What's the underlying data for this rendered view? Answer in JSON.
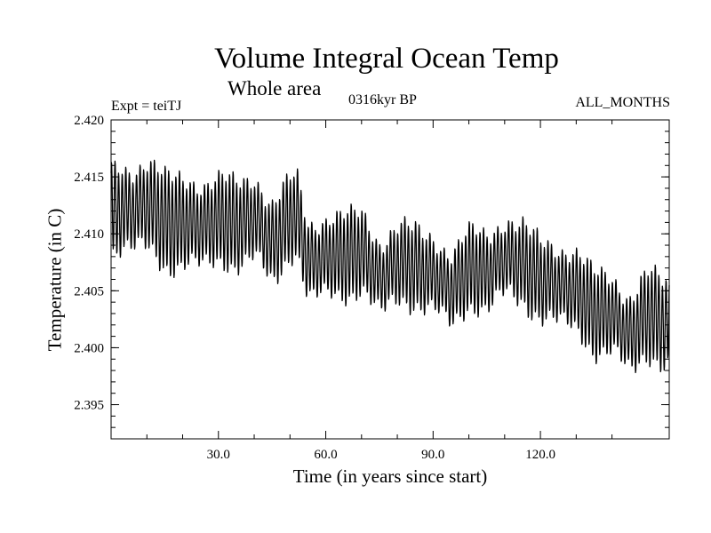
{
  "chart_data": {
    "type": "line",
    "title": "Volume Integral Ocean Temp",
    "subtitle": "Whole area",
    "annotations": {
      "experiment": "Expt = teiTJ",
      "period": "0316kyr BP",
      "months": "ALL_MONTHS"
    },
    "xlabel": "Time (in years since start)",
    "ylabel": "Temperature (in C)",
    "xlim": [
      0,
      156
    ],
    "ylim": [
      2.392,
      2.42
    ],
    "x_ticks": [
      30,
      60,
      90,
      120
    ],
    "x_tick_labels": [
      "30.0",
      "60.0",
      "90.0",
      "120.0"
    ],
    "y_ticks": [
      2.395,
      2.4,
      2.405,
      2.41,
      2.415,
      2.42
    ],
    "y_tick_labels": [
      "2.395",
      "2.400",
      "2.405",
      "2.410",
      "2.415",
      "2.420"
    ],
    "grid": false,
    "series": [
      {
        "name": "Volume integral ocean temperature",
        "color": "#000000",
        "seasonal_cycle_years": 1,
        "annual_mean": {
          "x": [
            0,
            5,
            10,
            15,
            20,
            25,
            30,
            35,
            40,
            45,
            50,
            52,
            55,
            60,
            65,
            70,
            75,
            80,
            85,
            90,
            95,
            100,
            105,
            110,
            115,
            120,
            125,
            130,
            135,
            140,
            145,
            150,
            156
          ],
          "y": [
            2.4115,
            2.4125,
            2.4122,
            2.4115,
            2.4105,
            2.4112,
            2.4108,
            2.4112,
            2.411,
            2.4095,
            2.411,
            2.4115,
            2.408,
            2.4075,
            2.4085,
            2.408,
            2.4065,
            2.407,
            2.4075,
            2.406,
            2.4055,
            2.4065,
            2.407,
            2.4075,
            2.4078,
            2.4055,
            2.406,
            2.4045,
            2.4035,
            2.4025,
            2.4015,
            2.4025,
            2.4025
          ]
        },
        "annual_amplitude": {
          "x": [
            0,
            5,
            10,
            20,
            30,
            40,
            50,
            60,
            70,
            80,
            90,
            100,
            110,
            120,
            130,
            140,
            150,
            156
          ],
          "y": [
            0.0035,
            0.0035,
            0.0038,
            0.0038,
            0.0035,
            0.0036,
            0.0032,
            0.0034,
            0.0033,
            0.0031,
            0.0032,
            0.0031,
            0.0033,
            0.0032,
            0.0034,
            0.0032,
            0.0035,
            0.0035
          ]
        }
      }
    ]
  }
}
